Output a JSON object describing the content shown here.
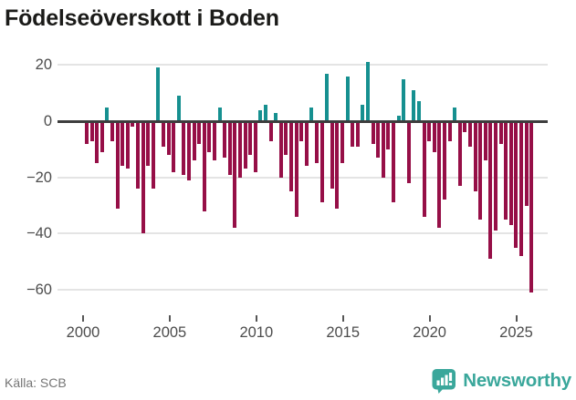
{
  "title": "Födelseöverskott i Boden",
  "footer": {
    "source": "Källa: SCB",
    "brand": "Newsworthy"
  },
  "colors": {
    "positive_bar": "#169090",
    "negative_bar": "#960f47",
    "brand_teal": "#3aa79b",
    "gridline": "#e4e4e4",
    "zero_line": "#3d3d3d",
    "axis_text": "#4c4c4c",
    "title_text": "#1b1b19",
    "source_text": "#757575"
  },
  "chart_data": {
    "type": "bar",
    "title": "Födelseöverskott i Boden",
    "xlabel": "",
    "ylabel": "",
    "x_axis": {
      "tick_years": [
        2000,
        2005,
        2010,
        2015,
        2020,
        2025
      ],
      "tick_labels": [
        "2000",
        "2005",
        "2010",
        "2015",
        "2020",
        "2025"
      ],
      "range_start": 2000,
      "range_end": 2026
    },
    "y_axis": {
      "tick_values": [
        20,
        0,
        -20,
        -40,
        -60
      ],
      "tick_labels": [
        "20",
        "0",
        "−20",
        "−40",
        "−60"
      ],
      "ylim": [
        -65,
        25
      ]
    },
    "grid": "horizontal",
    "legend": "none",
    "note": "Sub-annual birth-surplus bars 2000–2026, values estimated from pixels; positive bars teal, negative bars dark red",
    "values": [
      -8,
      -7,
      -15,
      -11,
      5,
      -7,
      -31,
      -16,
      -17,
      -2,
      -24,
      -40,
      -16,
      -24,
      19,
      -9,
      -12,
      -18,
      9,
      -19,
      -21,
      -14,
      -8,
      -32,
      -11,
      -14,
      5,
      -13,
      -19,
      -38,
      -20,
      -17,
      -12,
      -18,
      4,
      6,
      -7,
      3,
      -20,
      -12,
      -25,
      -34,
      -7,
      -16,
      5,
      -15,
      -29,
      17,
      -24,
      -31,
      -15,
      16,
      -9,
      -9,
      6,
      21,
      -8,
      -13,
      -20,
      -10,
      -29,
      2,
      15,
      -22,
      11,
      7,
      -34,
      -7,
      -11,
      -38,
      -28,
      -7,
      5,
      -23,
      -4,
      -9,
      -25,
      -35,
      -14,
      -49,
      -39,
      -8,
      -35,
      -37,
      -45,
      -48,
      -30,
      -61
    ]
  }
}
